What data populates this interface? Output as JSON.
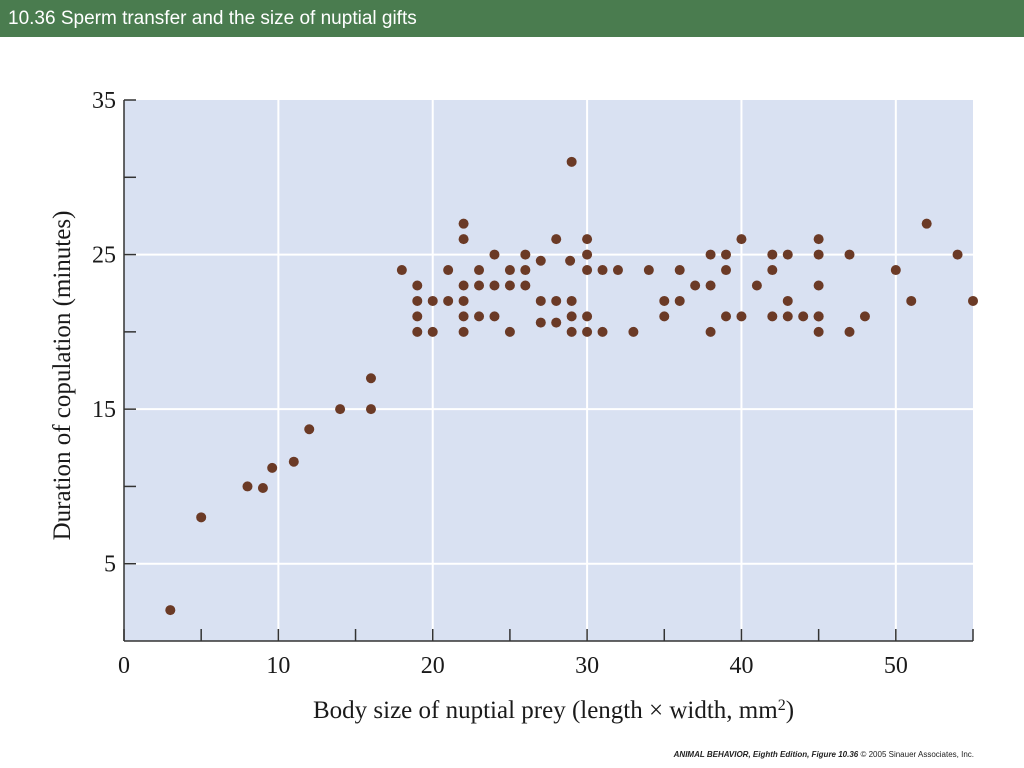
{
  "header": {
    "title": "10.36  Sperm transfer and the size of nuptial gifts"
  },
  "colors": {
    "header_bg": "#4a7c4f",
    "plot_bg": "#d9e1f2",
    "gridline": "#ffffff",
    "point": "#6b3a26",
    "axis": "#333333"
  },
  "chart_data": {
    "type": "scatter",
    "title": "",
    "xlabel": "Body size of nuptial prey (length × width, mm",
    "xlabel_sup": "2",
    "xlabel_tail": ")",
    "ylabel": "Duration of copulation (minutes)",
    "xlim": [
      0,
      55
    ],
    "ylim": [
      0,
      35
    ],
    "x_ticks": [
      0,
      10,
      20,
      30,
      40,
      50
    ],
    "x_minor_ticks": [
      5,
      15,
      25,
      35,
      45,
      55
    ],
    "y_ticks": [
      5,
      15,
      25,
      35
    ],
    "y_minor_ticks": [
      10,
      20,
      30
    ],
    "grid": true,
    "legend": "none",
    "x": [
      3,
      5,
      8,
      9,
      9.6,
      11,
      12,
      14,
      16,
      16,
      18,
      19,
      19,
      19,
      19,
      20,
      20,
      21,
      21,
      22,
      22,
      22,
      22,
      22,
      22,
      23,
      23,
      23,
      24,
      24,
      24,
      25,
      25,
      25,
      26,
      26,
      26,
      27,
      27,
      27,
      28,
      28,
      28,
      28.9,
      29,
      29,
      29,
      29,
      30,
      30,
      30,
      30,
      30,
      31,
      31,
      32,
      33,
      34,
      35,
      35,
      36,
      36,
      37,
      38,
      38,
      38,
      39,
      39,
      39,
      40,
      40,
      41,
      42,
      42,
      42,
      43,
      43,
      43,
      44,
      45,
      45,
      45,
      45,
      45,
      45,
      47,
      47,
      48,
      50,
      51,
      52,
      54,
      55
    ],
    "y": [
      2,
      8,
      10,
      9.9,
      11.2,
      11.6,
      13.7,
      15,
      15,
      17,
      24,
      23,
      22,
      21,
      20,
      22,
      20,
      24,
      22,
      27,
      26,
      23,
      22,
      21,
      20,
      24,
      23,
      21,
      25,
      23,
      21,
      24,
      23,
      20,
      25,
      24,
      23,
      24.6,
      22,
      20.6,
      26,
      22,
      20.6,
      24.6,
      31,
      22,
      21,
      20,
      26,
      25,
      24,
      21,
      20,
      24,
      20,
      24,
      20,
      24,
      22,
      21,
      24,
      22,
      23,
      25,
      23,
      20,
      25,
      24,
      21,
      26,
      21,
      23,
      25,
      24,
      21,
      25,
      22,
      21,
      21,
      26,
      25,
      23,
      21,
      21,
      20,
      25,
      20,
      21,
      24,
      22,
      27,
      25,
      22
    ]
  },
  "credit": {
    "ref": "ANIMAL BEHAVIOR, Eighth Edition, Figure 10.36",
    "rest": "© 2005 Sinauer Associates, Inc."
  }
}
